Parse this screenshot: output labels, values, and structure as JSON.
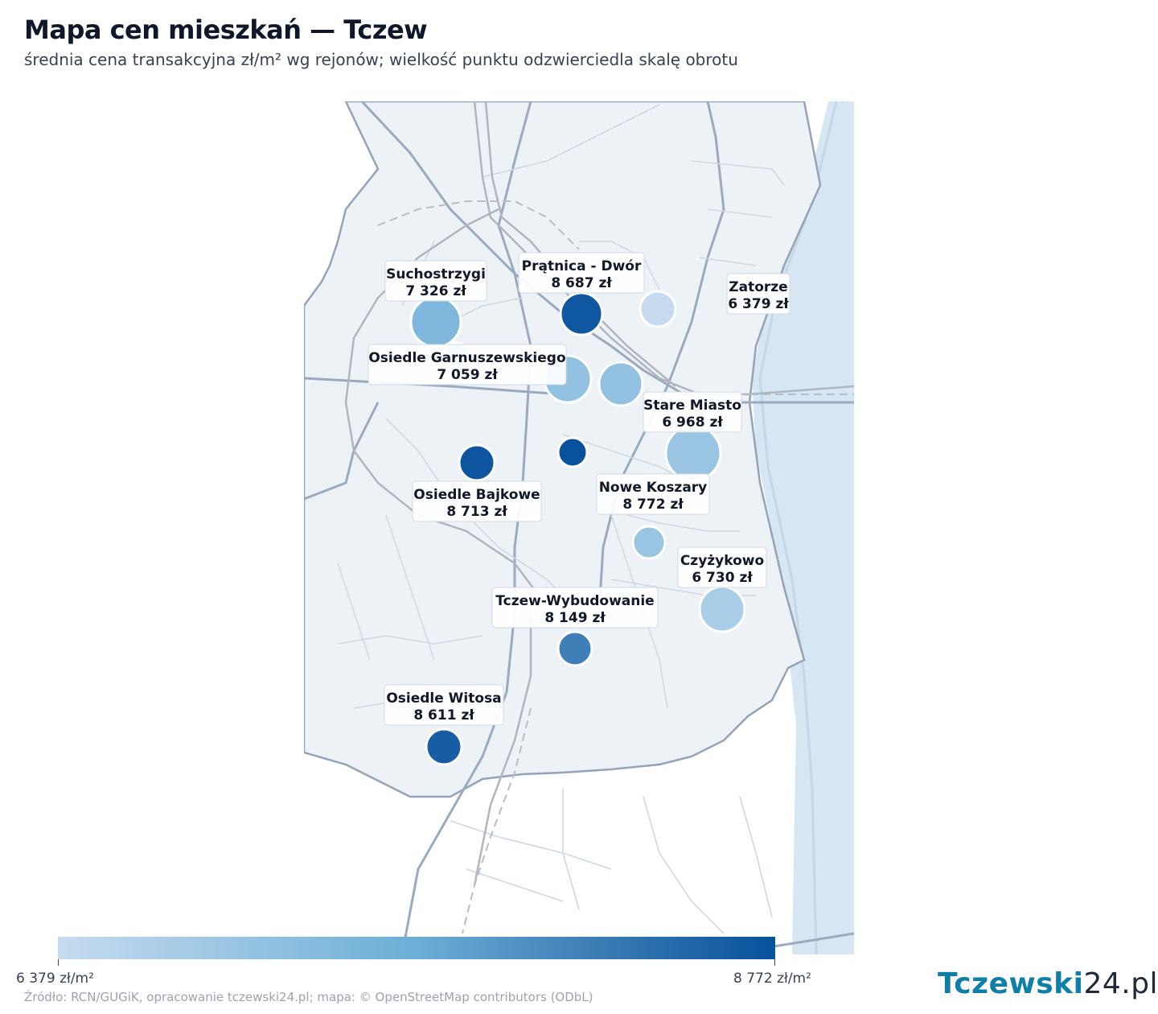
{
  "header": {
    "title": "Mapa cen mieszkań — Tczew",
    "subtitle": "średnia cena transakcyjna zł/m² wg rejonów; wielkość punktu odzwierciedla skalę obrotu"
  },
  "legend": {
    "min_label": "6 379 zł/m²",
    "max_label": "8 772 zł/m²",
    "min_value": 6379,
    "max_value": 8772,
    "color_low": "#c6dbef",
    "color_high": "#08519c"
  },
  "footer": {
    "source": "Źródło: RCN/GUGiK, opracowanie tczewski24.pl; mapa: © OpenStreetMap contributors (ODbL)",
    "logo_main": "Tczewski",
    "logo_suffix": "24.pl"
  },
  "districts": [
    {
      "name": "Suchostrzygi",
      "price_label": "7 326 zł",
      "price": 7326
    },
    {
      "name": "Prątnica - Dwór",
      "price_label": "8 687 zł",
      "price": 8687
    },
    {
      "name": "Zatorze",
      "price_label": "6 379 zł",
      "price": 6379
    },
    {
      "name": "Osiedle Garnuszewskiego",
      "price_label": "7 059 zł",
      "price": 7059
    },
    {
      "name": "Stare Miasto",
      "price_label": "6 968 zł",
      "price": 6968
    },
    {
      "name": "Osiedle Bajkowe",
      "price_label": "8 713 zł",
      "price": 8713
    },
    {
      "name": "Nowe Koszary",
      "price_label": "8 772 zł",
      "price": 8772
    },
    {
      "name": "Czyżykowo",
      "price_label": "6 730 zł",
      "price": 6730
    },
    {
      "name": "Tczew-Wybudowanie",
      "price_label": "8 149 zł",
      "price": 8149
    },
    {
      "name": "Osiedle Witosa",
      "price_label": "8 611 zł",
      "price": 8611
    }
  ],
  "colors": {
    "map_bg": "#edf2f7",
    "river": "#d6e6f2",
    "boundary": "#94a3b8",
    "road": "#cbd5e1",
    "rail": "#b0b6c0"
  }
}
